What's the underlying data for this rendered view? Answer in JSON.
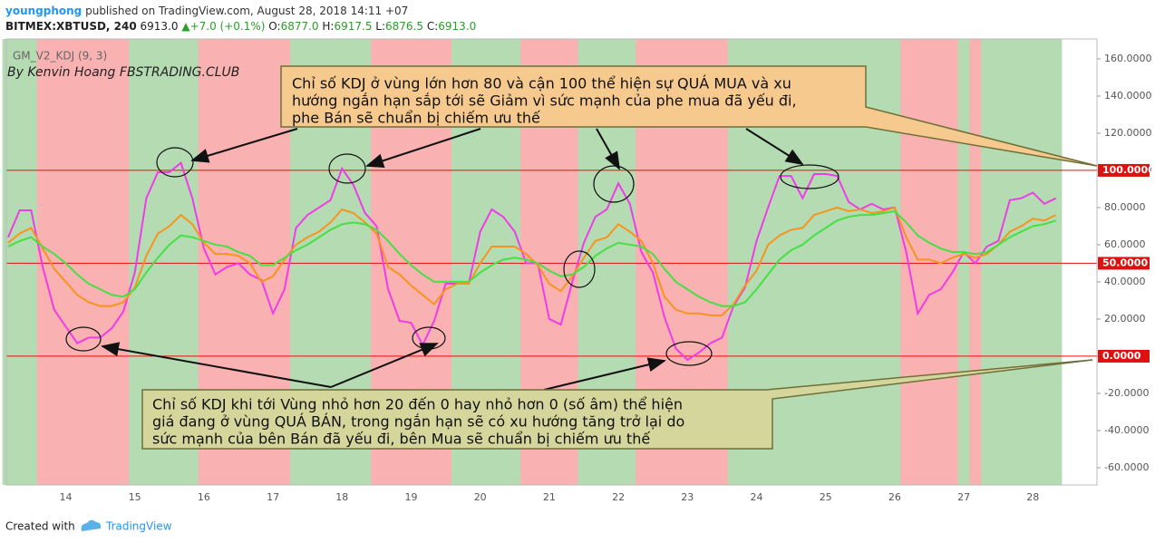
{
  "header": {
    "user": "youngphong",
    "published": "published on TradingView.com, August 28, 2018 14:11 +07",
    "symbol": "BITMEX:XBTUSD, 240",
    "price": "6913.0",
    "arrow": "▲",
    "change": "+7.0 (+0.1%)",
    "ohlc": [
      {
        "label": "O:",
        "value": "6877.0"
      },
      {
        "label": "H:",
        "value": "6917.5"
      },
      {
        "label": "L:",
        "value": "6876.5"
      },
      {
        "label": "C:",
        "value": "6913.0"
      }
    ]
  },
  "chart_data": {
    "type": "line",
    "title": "GM_V2_KDJ (9, 3)",
    "subtitle": "By Kenvin Hoang FBSTRADING.CLUB",
    "categories": [
      null,
      null,
      null,
      null,
      null,
      "14",
      null,
      null,
      null,
      null,
      null,
      "15",
      null,
      null,
      null,
      null,
      null,
      "16",
      null,
      null,
      null,
      null,
      null,
      "17",
      null,
      null,
      null,
      null,
      null,
      "18",
      null,
      null,
      null,
      null,
      null,
      "19",
      null,
      null,
      null,
      null,
      null,
      "20",
      null,
      null,
      null,
      null,
      null,
      "21",
      null,
      null,
      null,
      null,
      null,
      "22",
      null,
      null,
      null,
      null,
      null,
      "23",
      null,
      null,
      null,
      null,
      null,
      "24",
      null,
      null,
      null,
      null,
      null,
      "25",
      null,
      null,
      null,
      null,
      null,
      "26",
      null,
      null,
      null,
      null,
      null,
      "27",
      null,
      null,
      null,
      null,
      null,
      "28",
      null,
      null
    ],
    "series": [
      {
        "color": "#f03ce8",
        "values": [
          64,
          78.5,
          78.5,
          48,
          25,
          16,
          7,
          10,
          10,
          15,
          24,
          45,
          85,
          99,
          99,
          104,
          85,
          58,
          44,
          48,
          50,
          44,
          41,
          23,
          36,
          69,
          76,
          80,
          84,
          101,
          92,
          77,
          70,
          36,
          19,
          18,
          6,
          19,
          39,
          39,
          39,
          67,
          79,
          75,
          67,
          50,
          50,
          20,
          17,
          40,
          61,
          75,
          79,
          93,
          82,
          56,
          45,
          21,
          4,
          -2,
          2,
          7,
          10,
          27,
          37,
          62,
          80,
          97,
          97,
          85,
          98,
          98,
          97,
          83,
          79,
          82,
          79,
          80,
          56,
          23,
          33,
          36,
          45,
          56,
          50,
          59,
          62,
          84,
          85,
          88,
          82,
          85
        ]
      },
      {
        "color": "#f7941d",
        "values": [
          61,
          66,
          69,
          58,
          47,
          40,
          33,
          29,
          27,
          27,
          29,
          37,
          54,
          66,
          70,
          76,
          71,
          61,
          55,
          55,
          54,
          50,
          40,
          43,
          52,
          60,
          64,
          67,
          72,
          79,
          77,
          72,
          66,
          48,
          44,
          38,
          33,
          28,
          36,
          39,
          39,
          50,
          59,
          59,
          59,
          55,
          49,
          39,
          35,
          43,
          53,
          62,
          64,
          71,
          67,
          62,
          50,
          32,
          25,
          23,
          23,
          22,
          22,
          28,
          38,
          46,
          60,
          65,
          68,
          69,
          76,
          78,
          80,
          78,
          79,
          77,
          78,
          80,
          64,
          52,
          52,
          50,
          53,
          55,
          53,
          55,
          60,
          67,
          70,
          74,
          73,
          76
        ]
      },
      {
        "color": "#44e044",
        "values": [
          59,
          62,
          64,
          59,
          55,
          50,
          44,
          39,
          36,
          33,
          32,
          36,
          45,
          53,
          60,
          65,
          64,
          62,
          60,
          59,
          56,
          54,
          49,
          49,
          53,
          57,
          60,
          64,
          68,
          71,
          72,
          71,
          68,
          62,
          55,
          49,
          44,
          40,
          40,
          40,
          40,
          45,
          49,
          52,
          53,
          52,
          50,
          46,
          43,
          44,
          48,
          54,
          58,
          61,
          60,
          59,
          55,
          47,
          40,
          36,
          32,
          29,
          27,
          27,
          29,
          36,
          44,
          52,
          57,
          60,
          65,
          69,
          73,
          75,
          76,
          76,
          77,
          78,
          72,
          65,
          61,
          58,
          56,
          56,
          55,
          56,
          60,
          64,
          67,
          70,
          71,
          73
        ]
      }
    ],
    "background": {
      "palette": {
        "g": "#b4dbb2",
        "r": "#f9b1b1"
      },
      "bars": "gggrrrrrrrrggggggrrrrrrrrgggggggrrrrrrrggggggrrrrrgggggrrrrrrrrgggggggggggggggrrrrrgrggggggg"
    },
    "ylim": [
      -69.3,
      170.7
    ],
    "yticks": [
      {
        "value": 160,
        "label": "160.0000"
      },
      {
        "value": 140,
        "label": "140.0000"
      },
      {
        "value": 120,
        "label": "120.0000"
      },
      {
        "value": 100,
        "label": "100.0000"
      },
      {
        "value": 80,
        "label": "80.0000"
      },
      {
        "value": 60,
        "label": "60.0000"
      },
      {
        "value": 40,
        "label": "40.0000"
      },
      {
        "value": 20,
        "label": "20.0000"
      },
      {
        "value": 0,
        "label": "0.0000"
      },
      {
        "value": -20,
        "label": "-20.0000"
      },
      {
        "value": -40,
        "label": "-40.0000"
      },
      {
        "value": -60,
        "label": "-60.0000"
      }
    ],
    "hlines": [
      {
        "value": 100,
        "label": "100.0000"
      },
      {
        "value": 50,
        "label": "50.0000"
      },
      {
        "value": 0,
        "label": "0.0000"
      }
    ],
    "hline_color": "#e01010",
    "annotations": [
      [
        "Chỉ số KDJ ở vùng lớn hơn 80 và cận 100 thể hiện sự QUÁ MUA và xu",
        "hướng ngắn hạn sắp tới sẽ Giảm vì sức mạnh của phe mua đã yếu đi,",
        "phe Bán sẽ chuẩn bị chiếm ưu thế"
      ],
      [
        "Chỉ số KDJ khi tới Vùng nhỏ hơn 20 đến 0 hay nhỏ hơn 0 (số âm) thể hiện",
        "giá đang ở vùng QUÁ BÁN, trong ngắn hạn sẽ có xu hướng tăng trở lại do",
        "sức mạnh của bên Bán đã yếu đi, bên Mua sẽ chuẩn bị chiếm ưu thế"
      ]
    ]
  },
  "footer": {
    "created": "Created with",
    "brand": "TradingView"
  }
}
